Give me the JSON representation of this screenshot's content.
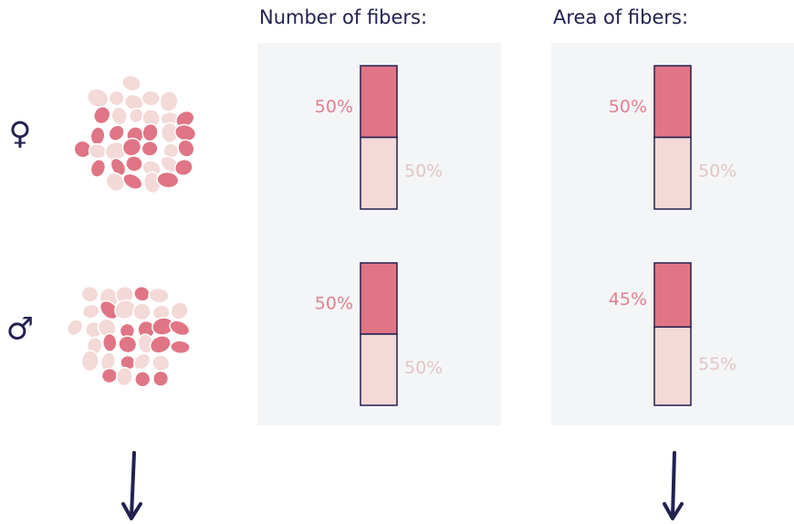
{
  "row_labels": [
    "♀",
    "♂"
  ],
  "chart_data": [
    {
      "type": "stacked-bar",
      "title": "Number of fibers:",
      "series": [
        {
          "color": "#df7585",
          "values": [
            50,
            50
          ],
          "value_labels": [
            "50%",
            "50%"
          ]
        },
        {
          "color": "#f3d9d7",
          "values": [
            50,
            50
          ],
          "value_labels": [
            "50%",
            "50%"
          ]
        }
      ]
    },
    {
      "type": "stacked-bar",
      "title": "Area of fibers:",
      "series": [
        {
          "color": "#df7585",
          "values": [
            50,
            45
          ],
          "value_labels": [
            "50%",
            "45%"
          ]
        },
        {
          "color": "#f3d9d7",
          "values": [
            50,
            55
          ],
          "value_labels": [
            "50%",
            "55%"
          ]
        }
      ]
    }
  ]
}
